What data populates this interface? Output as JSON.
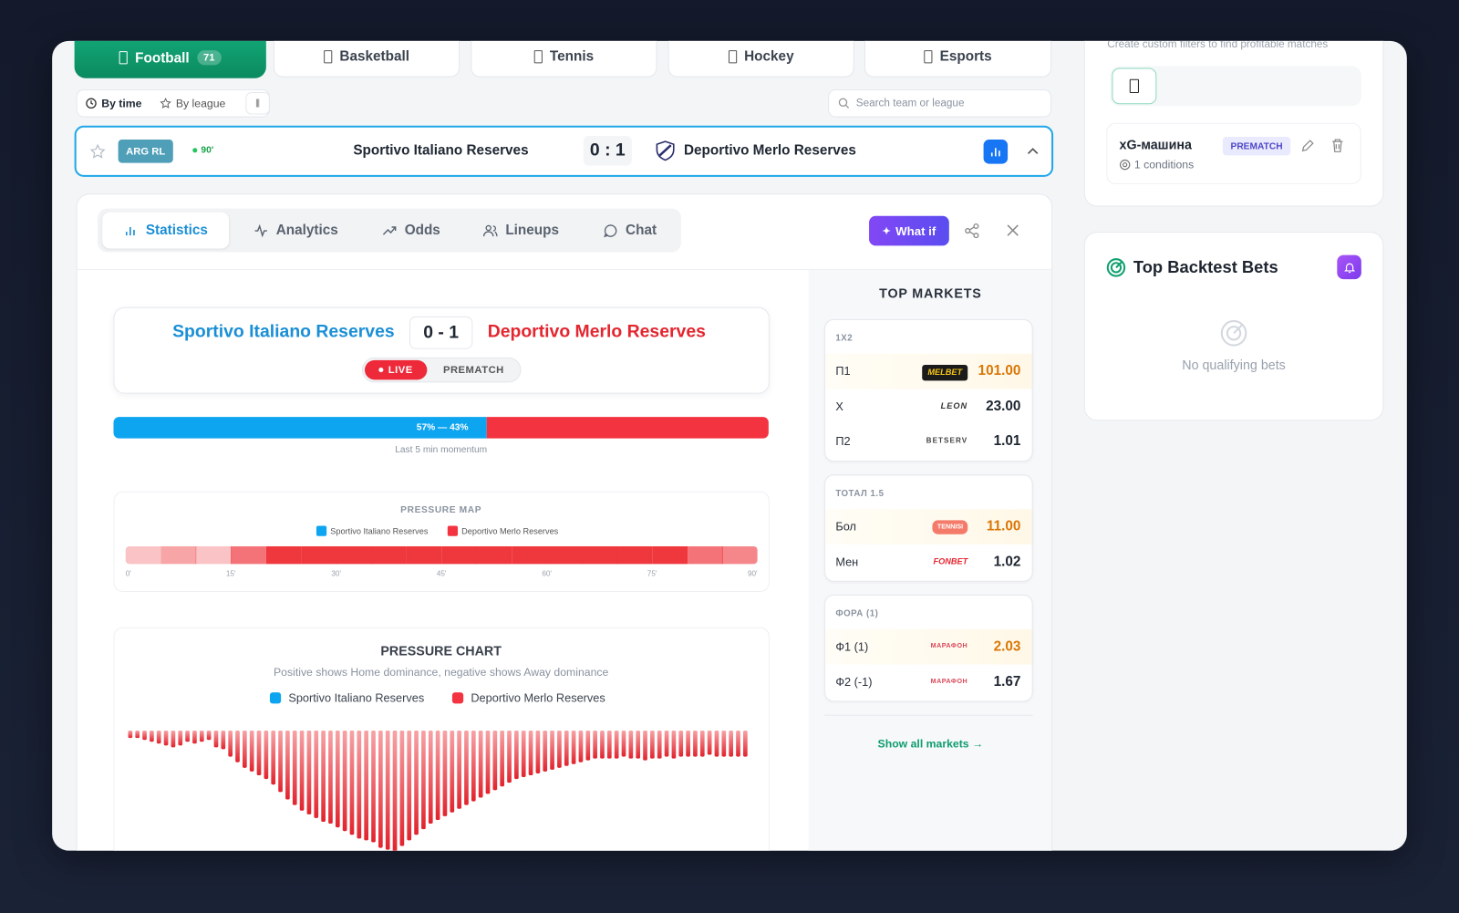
{
  "sport_tabs": [
    {
      "label": "Football",
      "count": 71
    },
    {
      "label": "Basketball"
    },
    {
      "label": "Tennis"
    },
    {
      "label": "Hockey"
    },
    {
      "label": "Esports"
    }
  ],
  "filters": {
    "by_time": "By time",
    "by_league": "By league",
    "search_placeholder": "Search team or league"
  },
  "match_row": {
    "league": "ARG RL",
    "minute": "90'",
    "home": "Sportivo Italiano Reserves",
    "score": "0 : 1",
    "away": "Deportivo Merlo Reserves"
  },
  "detail_tabs": [
    "Statistics",
    "Analytics",
    "Odds",
    "Lineups",
    "Chat"
  ],
  "what_if": "What if",
  "scoreboard": {
    "home": "Sportivo Italiano Reserves",
    "score": "0 - 1",
    "away": "Deportivo Merlo Reserves",
    "live": "LIVE",
    "prematch": "PREMATCH"
  },
  "momentum": {
    "home": 57,
    "away": 43,
    "label": "57% — 43%",
    "caption": "Last 5 min momentum"
  },
  "pressure_map": {
    "title": "PRESSURE MAP",
    "legend": [
      "Sportivo Italiano Reserves",
      "Deportivo Merlo Reserves"
    ],
    "cells": [
      0.3,
      0.45,
      0.3,
      0.7,
      1,
      1,
      1,
      1,
      1,
      1,
      1,
      1,
      1,
      1,
      1,
      1,
      0.7,
      0.6
    ],
    "ticks": [
      "0'",
      "15'",
      "30'",
      "45'",
      "60'",
      "75'",
      "90'"
    ]
  },
  "pressure_chart": {
    "type": "bar",
    "title": "PRESSURE CHART",
    "subtitle": "Positive shows Home dominance, negative shows Away dominance",
    "legend": [
      "Sportivo Italiano Reserves",
      "Deportivo Merlo Reserves"
    ],
    "values": [
      -8,
      -8,
      -10,
      -12,
      -14,
      -16,
      -18,
      -16,
      -12,
      -14,
      -12,
      -10,
      -18,
      -20,
      -28,
      -34,
      -40,
      -44,
      -48,
      -52,
      -58,
      -66,
      -74,
      -80,
      -86,
      -90,
      -94,
      -98,
      -100,
      -104,
      -108,
      -112,
      -116,
      -118,
      -120,
      -126,
      -128,
      -130,
      -124,
      -118,
      -112,
      -106,
      -100,
      -96,
      -92,
      -88,
      -84,
      -80,
      -76,
      -72,
      -68,
      -64,
      -60,
      -56,
      -52,
      -50,
      -48,
      -46,
      -44,
      -42,
      -40,
      -38,
      -36,
      -34,
      -32,
      -30,
      -30,
      -30,
      -30,
      -28,
      -30,
      -30,
      -32,
      -30,
      -30,
      -28,
      -30,
      -28,
      -28,
      -28,
      -28,
      -26,
      -28,
      -28,
      -28,
      -28,
      -28
    ]
  },
  "top_markets": {
    "title": "TOP MARKETS",
    "groups": [
      {
        "name": "1X2",
        "rows": [
          {
            "label": "П1",
            "bookmaker": "MELBET",
            "odds": "101.00",
            "best": true
          },
          {
            "label": "X",
            "bookmaker": "LEON",
            "odds": "23.00",
            "best": false
          },
          {
            "label": "П2",
            "bookmaker": "BETSERV",
            "odds": "1.01",
            "best": false
          }
        ]
      },
      {
        "name": "ТОТАЛ 1.5",
        "rows": [
          {
            "label": "Бол",
            "bookmaker": "TENNISI",
            "odds": "11.00",
            "best": true
          },
          {
            "label": "Мен",
            "bookmaker": "FONBET",
            "odds": "1.02",
            "best": false
          }
        ]
      },
      {
        "name": "ФОРА (1)",
        "rows": [
          {
            "label": "Ф1 (1)",
            "bookmaker": "МАРАФОН",
            "odds": "2.03",
            "best": true
          },
          {
            "label": "Ф2 (-1)",
            "bookmaker": "МАРАФОН",
            "odds": "1.67",
            "best": false
          }
        ]
      }
    ],
    "show_all": "Show all markets →"
  },
  "sidebar": {
    "filters_hint": "Create custom filters to find profitable matches",
    "filter": {
      "name": "xG-машина",
      "badge": "PREMATCH",
      "conditions": "1 conditions"
    },
    "backtest": {
      "title": "Top Backtest Bets",
      "empty": "No qualifying bets"
    }
  }
}
